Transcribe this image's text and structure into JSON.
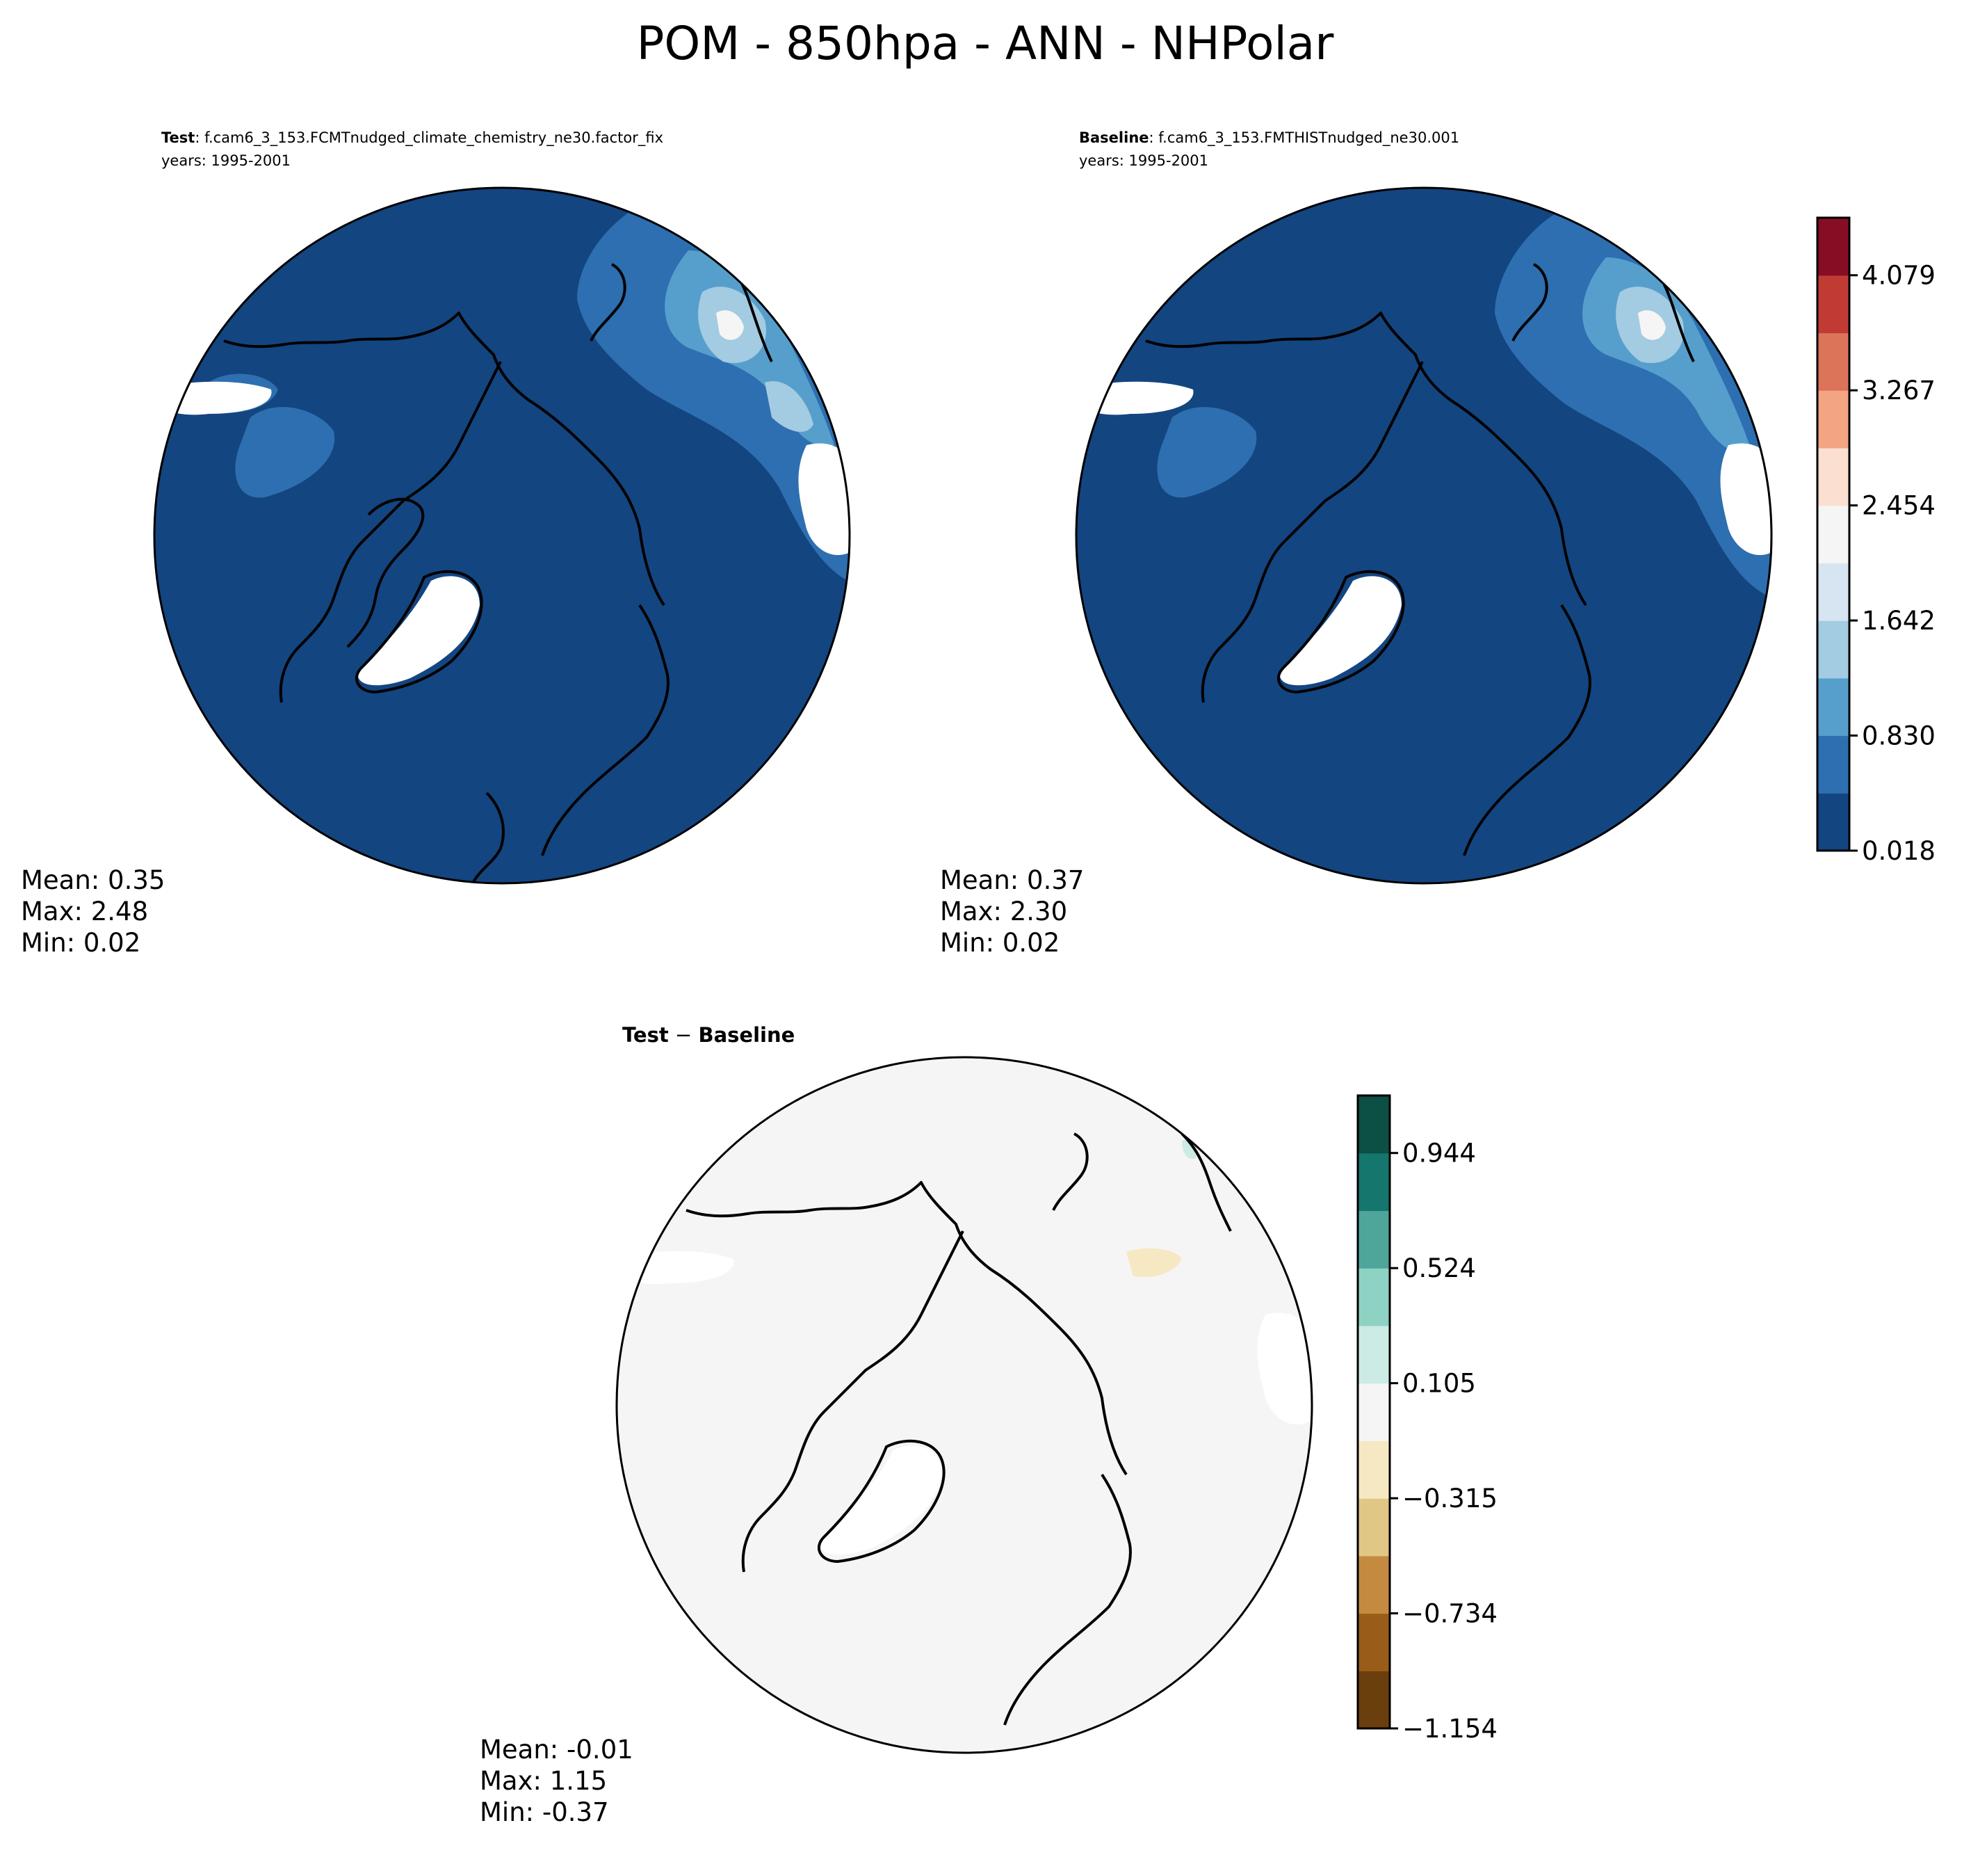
{
  "title": "POM - 850hpa - ANN - NHPolar",
  "chart_data": [
    {
      "type": "heatmap",
      "panel": "test",
      "label_bold": "Test",
      "label_sep": ": ",
      "case": "f.cam6_3_153.FCMTnudged_climate_chemistry_ne30.factor_fix",
      "years": "years: 1995-2001",
      "stats": {
        "mean": "Mean:  0.35",
        "max": "Max:  2.48",
        "min": "Min:  0.02"
      }
    },
    {
      "type": "heatmap",
      "panel": "baseline",
      "label_bold": "Baseline",
      "label_sep": ": ",
      "case": "f.cam6_3_153.FMTHISTnudged_ne30.001",
      "years": "years: 1995-2001",
      "stats": {
        "mean": "Mean:  0.37",
        "max": "Max:  2.30",
        "min": "Min:  0.02"
      },
      "colorbar": {
        "range": [
          0.018,
          4.485
        ],
        "ticks": [
          "0.018",
          "0.830",
          "1.642",
          "2.454",
          "3.267",
          "4.079"
        ],
        "colors": [
          "#134580",
          "#2d6fb0",
          "#569fcc",
          "#a3cbe2",
          "#d6e5f1",
          "#f5f5f5",
          "#fbdfd0",
          "#f3a483",
          "#dc745a",
          "#c13b35",
          "#850e25"
        ]
      }
    },
    {
      "type": "heatmap",
      "panel": "difference",
      "label_bold": "Test",
      "label_sep": " − ",
      "label_bold2": "Baseline",
      "stats": {
        "mean": "Mean: -0.01",
        "max": "Max:  1.15",
        "min": "Min: -0.37"
      },
      "colorbar": {
        "range": [
          -1.154,
          1.154
        ],
        "ticks": [
          "−1.154",
          "−0.734",
          "−0.315",
          "0.105",
          "0.524",
          "0.944"
        ],
        "colors": [
          "#6a3f0d",
          "#995d19",
          "#c48a3f",
          "#e1c786",
          "#f6e8c3",
          "#f4f5f4",
          "#ccebe5",
          "#8ed2c4",
          "#4ea69b",
          "#14766c",
          "#0d4f45"
        ]
      }
    }
  ],
  "icons": {
    "coastline": "coastline-outline-icon",
    "greenland": "greenland-shape-icon"
  }
}
